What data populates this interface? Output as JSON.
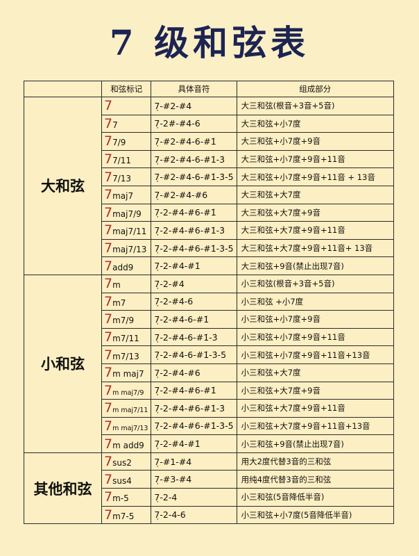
{
  "title": "7 级和弦表",
  "colors": {
    "background": "#fbefc6",
    "title": "#1c2452",
    "chord_root": "#b0302a"
  },
  "headers": [
    "",
    "和弦标记",
    "具体音符",
    "组成部分"
  ],
  "sections": [
    {
      "label": "大和弦",
      "rows": [
        {
          "root": "7",
          "suffix": "",
          "notes": "7̣-#2-#4",
          "desc": "大三和弦(根音+3音+5音)"
        },
        {
          "root": "7",
          "suffix": "7",
          "notes": "7̣-2#-#4-6",
          "desc": "大三和弦+小7度"
        },
        {
          "root": "7",
          "suffix": "7/9",
          "notes": "7̣-#2-#4-6-#1̇",
          "desc": "大三和弦+小7度+9音"
        },
        {
          "root": "7",
          "suffix": "7/11",
          "notes": "7̣-#2-#4-6-#1̇-3̇",
          "desc": "大三和弦+小7度+9音+11音"
        },
        {
          "root": "7",
          "suffix": "7/13",
          "notes": "7̣-#2-#4-6-#1̇-3̇-5̇",
          "desc": "大三和弦+小7度+9音+11音 + 13音"
        },
        {
          "root": "7",
          "suffix": "maj7",
          "notes": "7̣-#2-#4-#6",
          "desc": "大三和弦+大7度"
        },
        {
          "root": "7",
          "suffix": "maj7/9",
          "notes": "7̣-2-#4-#6-#1̇",
          "desc": "大三和弦+大7度+9音"
        },
        {
          "root": "7",
          "suffix": "maj7/11",
          "notes": "7̣-2-#4-#6-#1̇-3̇",
          "desc": "大三和弦+大7度+9音+11音"
        },
        {
          "root": "7",
          "suffix": "maj7/13",
          "notes": "7̣-2-#4-#6-#1̇-3̇-5̇",
          "desc": "大三和弦+大7度+9音+11音+ 13音"
        },
        {
          "root": "7",
          "suffix": "add9",
          "notes": "7̣-2-#4-#1̇",
          "desc": "大三和弦+9音(禁止出现7音)"
        }
      ]
    },
    {
      "label": "小和弦",
      "rows": [
        {
          "root": "7",
          "suffix": "m",
          "notes": "7̣-2-#4",
          "desc": "小三和弦(根音+3音+5音)"
        },
        {
          "root": "7",
          "suffix": "m7",
          "notes": "7̣-2-#4-6",
          "desc": "小三和弦 +小7度"
        },
        {
          "root": "7",
          "suffix": "m7/9",
          "notes": "7̣-2-#4-6-#1̇",
          "desc": "小三和弦+小7度+9音"
        },
        {
          "root": "7",
          "suffix": "m7/11",
          "notes": "7̣-2-#4-6-#1̇-3̇",
          "desc": "小三和弦+小7度+9音+11音"
        },
        {
          "root": "7",
          "suffix": "m7/13",
          "notes": "7̣-2-#4-6-#1̇-3̇-5̇",
          "desc": "小三和弦+小7度+9音+11音+13音"
        },
        {
          "root": "7",
          "suffix": "m maj7",
          "notes": "7̣-2-#4-#6",
          "desc": "小三和弦+大7度"
        },
        {
          "root": "7",
          "suffix": "m maj7/9",
          "small": true,
          "notes": "7̣-2-#4-#6-#1̇",
          "desc": "小三和弦+大7度+9音"
        },
        {
          "root": "7",
          "suffix": "m maj7/11",
          "small": true,
          "notes": "7̣-2-#4-#6-#1̇-3̇",
          "desc": "小三和弦+大7度+9音+11音"
        },
        {
          "root": "7",
          "suffix": "m maj7/13",
          "small": true,
          "notes": "7̣-2-#4-#6-#1̇-3̇-5̇",
          "desc": "小三和弦+大7度+9音+11音+13音"
        },
        {
          "root": "7",
          "suffix": "m add9",
          "notes": "7̣-2-#4-#1̇",
          "desc": "小三和弦+9音(禁止出现7音)"
        }
      ]
    },
    {
      "label": "其他和弦",
      "rows": [
        {
          "root": "7",
          "suffix": "sus2",
          "notes": "7̣-#1-#4",
          "desc": "用大2度代替3音的三和弦"
        },
        {
          "root": "7",
          "suffix": "sus4",
          "notes": "7̣-#3-#4",
          "desc": "用纯4度代替3音的三和弦"
        },
        {
          "root": "7",
          "suffix": "m-5",
          "notes": "7̣-2-4",
          "desc": "小三和弦(5音降低半音)"
        },
        {
          "root": "7",
          "suffix": "m7-5",
          "notes": "7̣-2-4-6",
          "desc": "小三和弦+小7度(5音降低半音)"
        }
      ]
    }
  ]
}
